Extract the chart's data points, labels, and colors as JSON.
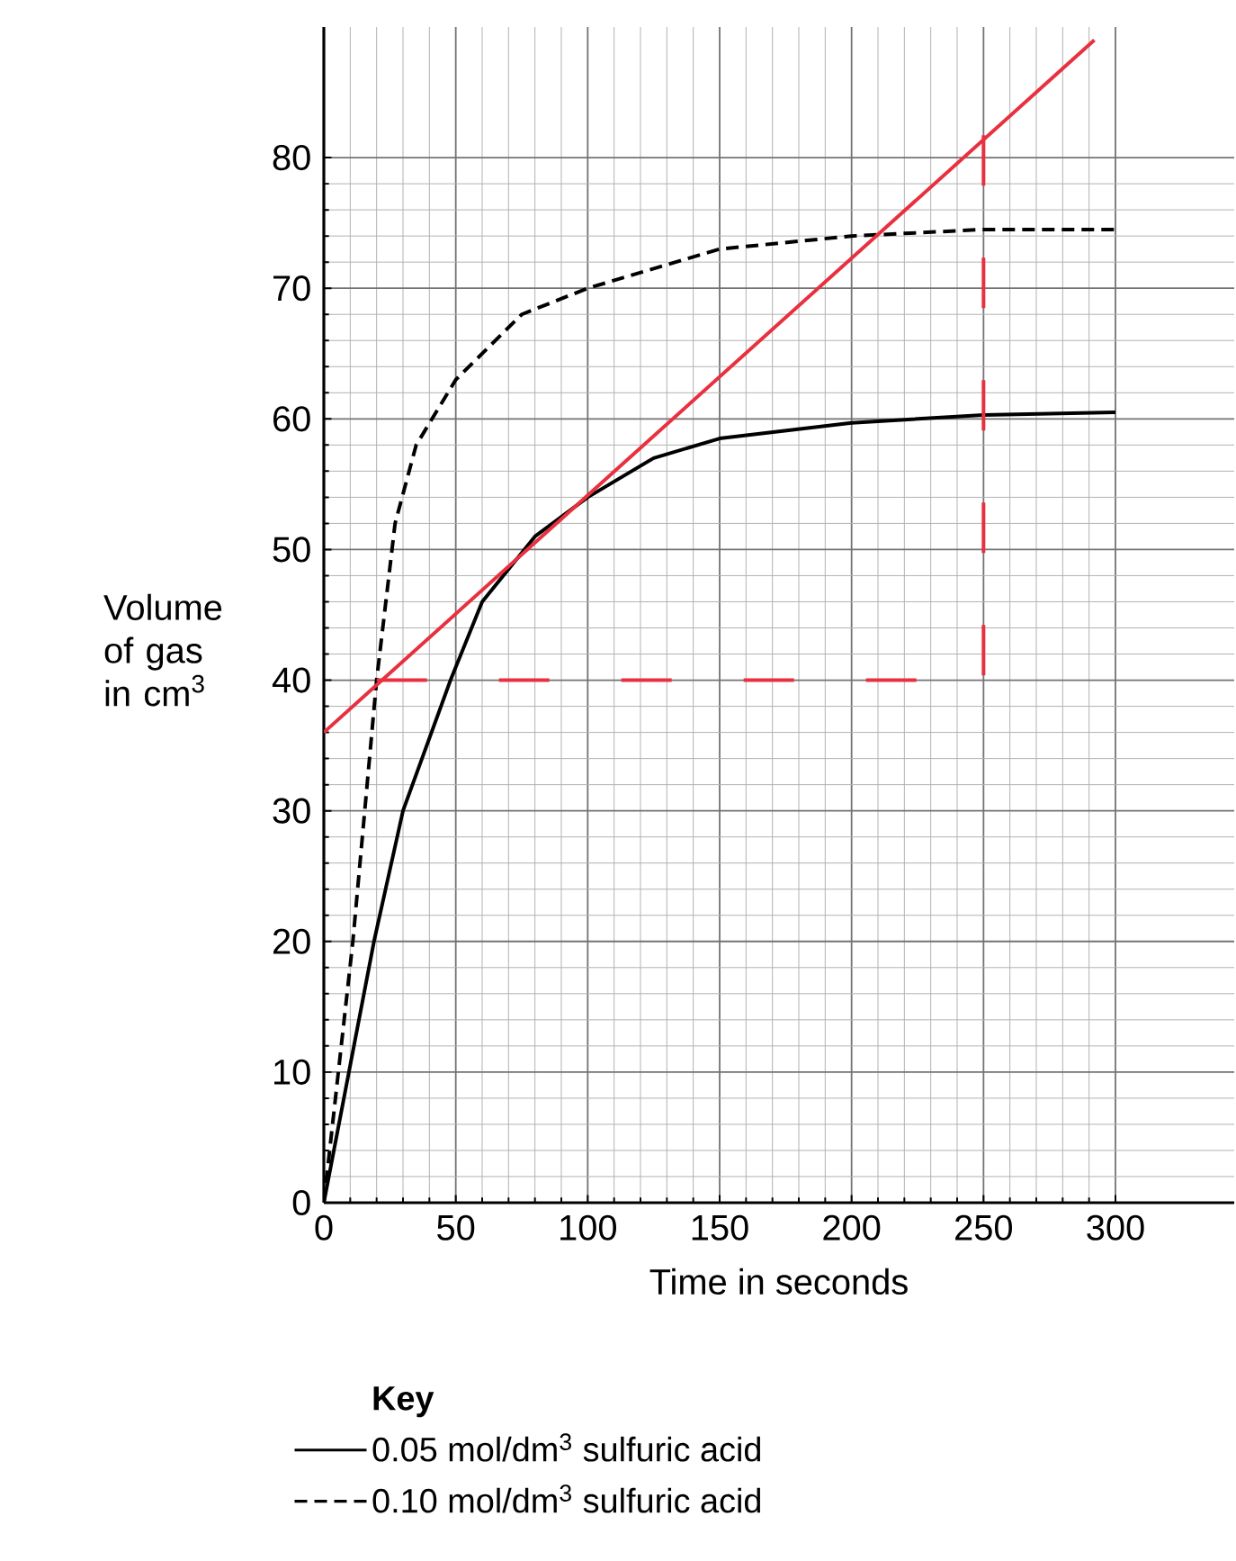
{
  "chart_data": {
    "type": "line",
    "xlabel": "Time in seconds",
    "ylabel": "Volume of gas in cm$^{3}$",
    "legend_title": "Key",
    "xlim": [
      0,
      345
    ],
    "ylim": [
      0,
      90
    ],
    "xticks": [
      0,
      50,
      100,
      150,
      200,
      250,
      300
    ],
    "yticks": [
      0,
      10,
      20,
      30,
      40,
      50,
      60,
      70,
      80
    ],
    "grid": true,
    "legend": "bottom",
    "series": [
      {
        "name": "0.05 mol/dm$^{3}$ sulfuric acid",
        "color": "#000000",
        "line_style": "solid",
        "x": [
          0,
          19,
          30,
          48,
          60,
          80,
          100,
          125,
          150,
          200,
          250,
          300
        ],
        "values": [
          0,
          20,
          30,
          40,
          46,
          51,
          54,
          57,
          58.5,
          59.7,
          60.3,
          60.5
        ]
      },
      {
        "name": "0.10 mol/dm$^{3}$ sulfuric acid",
        "color": "#000000",
        "line_style": "dashed",
        "x": [
          0,
          11,
          20,
          27,
          35,
          50,
          75,
          100,
          150,
          200,
          250,
          300
        ],
        "values": [
          0,
          20,
          40,
          52,
          58,
          63,
          68,
          70,
          73,
          74,
          74.5,
          74.5
        ]
      },
      {
        "color": "#e8303f",
        "line_style": "solid",
        "x": [
          0,
          292
        ],
        "values": [
          36,
          89
        ]
      },
      {
        "color": "#e8303f",
        "line_style": "dashed",
        "x": [
          20,
          250,
          250
        ],
        "values": [
          40,
          40,
          82
        ]
      }
    ]
  }
}
